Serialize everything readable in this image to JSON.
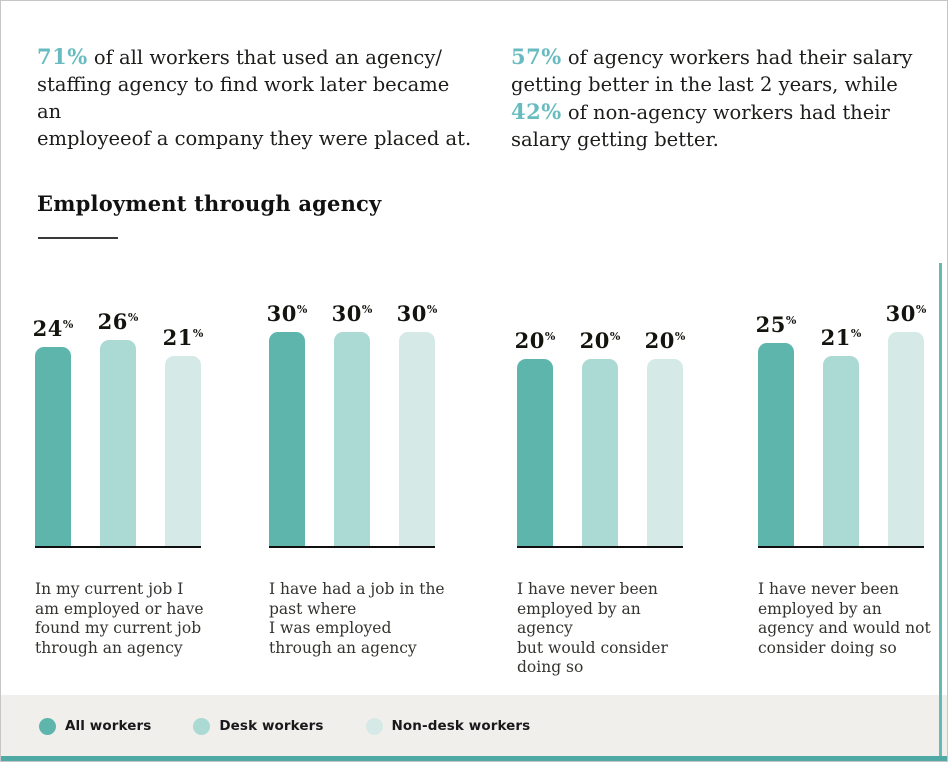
{
  "intro": {
    "left": {
      "highlight": "71%",
      "text": " of all workers that used an agency/\nstaffing agency to find work later became an\nemployeeof a company they were placed at."
    },
    "right": {
      "highlight1": "57%",
      "text1": " of agency workers had their salary\ngetting better in the last 2 years, while\n",
      "highlight2": "42%",
      "text2": " of non-agency workers had their\nsalary getting better."
    }
  },
  "section": {
    "title": "Employment through agency"
  },
  "theme": {
    "accent_text_color": "#68bcc0",
    "legend_strip_bg": "#f0efec",
    "footer_bar_color": "#4fa9a5",
    "right_rule_color": "#64bab5",
    "axis_color": "#101010"
  },
  "chart_data": {
    "type": "bar",
    "title": "Employment through agency",
    "value_suffix": "%",
    "grid": false,
    "bar_labels": true,
    "legend_position": "bottom",
    "ylim": [
      0,
      35
    ],
    "series": [
      {
        "name": "All workers",
        "color": "#5db5ac",
        "values": [
          24,
          30,
          20,
          25
        ]
      },
      {
        "name": "Desk workers",
        "color": "#abd9d3",
        "values": [
          26,
          30,
          20,
          21
        ]
      },
      {
        "name": "Non-desk workers",
        "color": "#d5eae6",
        "values": [
          21,
          30,
          20,
          30
        ]
      }
    ],
    "categories": [
      "In my current job I am employed or have found my current job through an agency",
      "I have had a job in the past where I was employed through an agency",
      "I have never been employed by an agency but would consider doing so",
      "I have never been employed by an agency and would not consider doing so"
    ],
    "category_lines": [
      [
        "In my current job I",
        "am employed or have",
        "found my current job",
        "through an agency"
      ],
      [
        "I have had a job in the",
        "past where",
        "I was employed",
        "through an agency"
      ],
      [
        "I have never been",
        "employed by an agency",
        "but would consider",
        "doing so"
      ],
      [
        "I have never been",
        "employed by an",
        "agency and would not",
        "consider doing so"
      ]
    ]
  }
}
